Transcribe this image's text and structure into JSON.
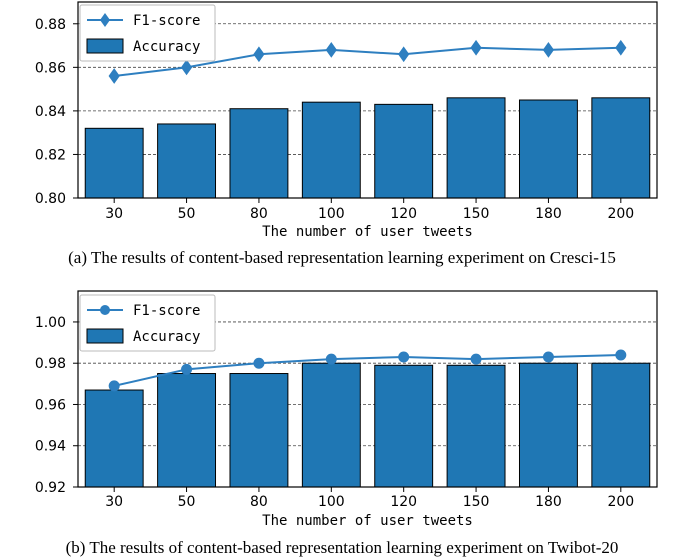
{
  "chart_data": [
    {
      "type": "bar",
      "categories": [
        "30",
        "50",
        "80",
        "100",
        "120",
        "150",
        "180",
        "200"
      ],
      "series": [
        {
          "name": "Accuracy",
          "kind": "bar",
          "values": [
            0.832,
            0.834,
            0.841,
            0.844,
            0.843,
            0.846,
            0.845,
            0.846
          ]
        },
        {
          "name": "F1-score",
          "kind": "line",
          "marker": "diamond",
          "values": [
            0.856,
            0.86,
            0.866,
            0.868,
            0.866,
            0.869,
            0.868,
            0.869
          ]
        }
      ],
      "xlabel": "The number of user tweets",
      "ylabel": "",
      "ylim": [
        0.8,
        0.89
      ],
      "yticks": [
        "0.80",
        "0.82",
        "0.84",
        "0.86",
        "0.88"
      ],
      "grid": "horizontal dashed",
      "legend": "top-left",
      "caption": "(a) The results of content-based representation learning experiment on Cresci-15",
      "colors": {
        "bar": "#1f77b4",
        "line": "#2e7fc0"
      }
    },
    {
      "type": "bar",
      "categories": [
        "30",
        "50",
        "80",
        "100",
        "120",
        "150",
        "180",
        "200"
      ],
      "series": [
        {
          "name": "Accuracy",
          "kind": "bar",
          "values": [
            0.967,
            0.975,
            0.975,
            0.98,
            0.979,
            0.979,
            0.98,
            0.98
          ]
        },
        {
          "name": "F1-score",
          "kind": "line",
          "marker": "circle",
          "values": [
            0.969,
            0.977,
            0.98,
            0.982,
            0.983,
            0.982,
            0.983,
            0.984
          ]
        }
      ],
      "xlabel": "The number of user tweets",
      "ylabel": "",
      "ylim": [
        0.92,
        1.015
      ],
      "yticks": [
        "0.92",
        "0.94",
        "0.96",
        "0.98",
        "1.00"
      ],
      "grid": "horizontal dashed",
      "legend": "top-left",
      "caption": "(b) The results of content-based representation learning experiment on Twibot-20",
      "colors": {
        "bar": "#1f77b4",
        "line": "#2e7fc0"
      }
    }
  ]
}
